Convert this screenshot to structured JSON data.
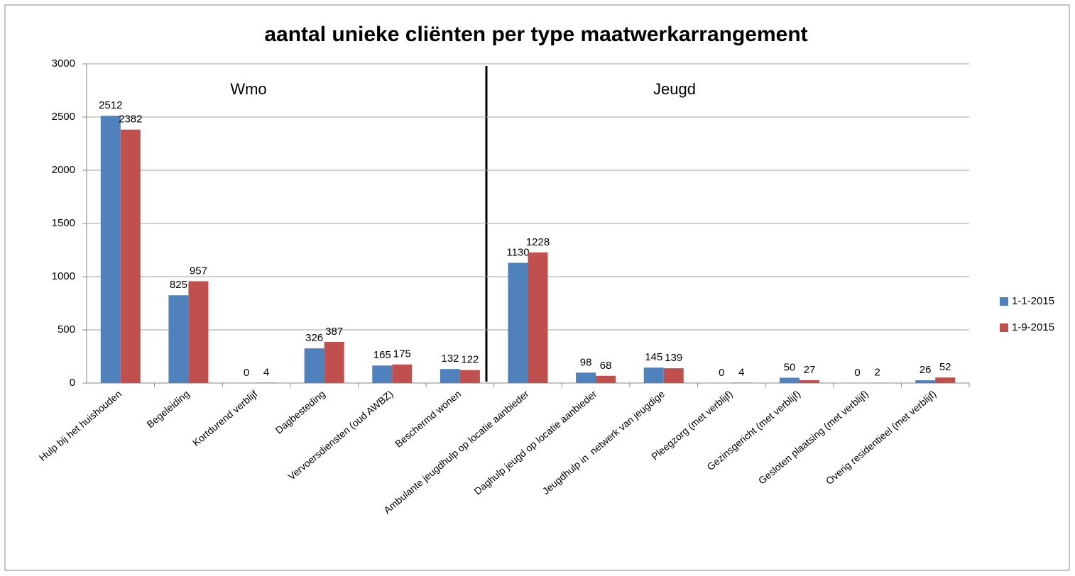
{
  "chart_data": {
    "type": "bar",
    "title": "aantal unieke cliënten per type maatwerkarrangement",
    "annotations": [
      "Wmo",
      "Jeugd"
    ],
    "categories": [
      "Hulp bij het huishouden",
      "Begeleiding",
      "Kortdurend verblijf",
      "Dagbesteding",
      "Vervoersdiensten (oud AWBZ)",
      "Beschermd wonen",
      "Ambulante jeugdhulp op locatie aanbieder",
      "Daghulp jeugd op locatie aanbieder",
      "Jeugdhulp in  netwerk van jeugdige",
      "Pleegzorg (met verblijf)",
      "Gezinsgericht (met verblijf)",
      "Gesloten plaatsing (met verblijf)",
      "Overig residentieel (met verblijf)"
    ],
    "series": [
      {
        "name": "1-1-2015",
        "color": "#4f81bd",
        "values": [
          2512,
          825,
          0,
          326,
          165,
          132,
          1130,
          98,
          145,
          0,
          50,
          0,
          26
        ]
      },
      {
        "name": "1-9-2015",
        "color": "#c0504d",
        "values": [
          2382,
          957,
          4,
          387,
          175,
          122,
          1228,
          68,
          139,
          4,
          27,
          2,
          52
        ]
      }
    ],
    "ylim": [
      0,
      3000
    ],
    "yticks": [
      0,
      500,
      1000,
      1500,
      2000,
      2500,
      3000
    ],
    "grid": true,
    "legend": "right"
  }
}
